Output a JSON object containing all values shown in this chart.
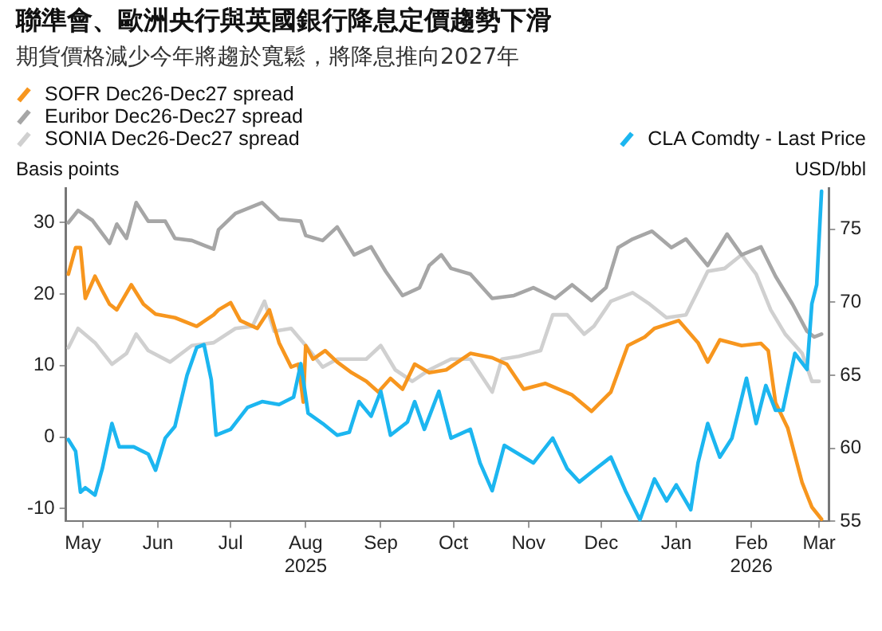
{
  "chart_data": {
    "type": "line",
    "title": "聯準會、歐洲央行與英國銀行降息定價趨勢下滑",
    "subtitle": "期貨價格減少今年將趨於寬鬆，將降息推向2027年",
    "ylabel": "Basis points",
    "y2label": "USD/bbl",
    "legend": "top",
    "xlim": [
      "2025-04-24",
      "2026-03-05"
    ],
    "xticks": [
      {
        "value": "2025-05-01",
        "label": "May"
      },
      {
        "value": "2025-06-01",
        "label": "Jun"
      },
      {
        "value": "2025-07-01",
        "label": "Jul"
      },
      {
        "value": "2025-08-01",
        "label": "Aug\n2025"
      },
      {
        "value": "2025-09-01",
        "label": "Sep"
      },
      {
        "value": "2025-10-01",
        "label": "Oct"
      },
      {
        "value": "2025-11-01",
        "label": "Nov"
      },
      {
        "value": "2025-12-01",
        "label": "Dec"
      },
      {
        "value": "2026-01-01",
        "label": "Jan"
      },
      {
        "value": "2026-02-01",
        "label": "Feb\n2026"
      },
      {
        "value": "2026-03-01",
        "label": "Mar"
      }
    ],
    "ylim": [
      -11.8,
      34.8
    ],
    "yticks": [
      -10,
      0,
      10,
      20,
      30
    ],
    "y2lim": [
      55,
      77.8
    ],
    "y2ticks": [
      55,
      60,
      65,
      70,
      75
    ],
    "series": [
      {
        "name": "SOFR Dec26-Dec27 spread",
        "color": "#f7961e",
        "x": [
          "2025-04-25",
          "2025-04-28",
          "2025-04-30",
          "2025-05-02",
          "2025-05-06",
          "2025-05-09",
          "2025-05-12",
          "2025-05-15",
          "2025-05-21",
          "2025-05-26",
          "2025-05-31",
          "2025-06-08",
          "2025-06-17",
          "2025-06-24",
          "2025-06-26",
          "2025-07-01",
          "2025-07-05",
          "2025-07-12",
          "2025-07-17",
          "2025-07-21",
          "2025-07-26",
          "2025-07-29",
          "2025-07-31",
          "2025-08-01",
          "2025-08-04",
          "2025-08-09",
          "2025-08-14",
          "2025-08-20",
          "2025-08-26",
          "2025-08-31",
          "2025-09-05",
          "2025-09-10",
          "2025-09-15",
          "2025-09-21",
          "2025-09-28",
          "2025-10-08",
          "2025-10-17",
          "2025-10-23",
          "2025-10-30",
          "2025-11-08",
          "2025-11-19",
          "2025-11-27",
          "2025-12-05",
          "2025-12-12",
          "2025-12-19",
          "2025-12-23",
          "2026-01-02",
          "2026-01-10",
          "2026-01-14",
          "2026-01-19",
          "2026-01-28",
          "2026-02-05",
          "2026-02-08",
          "2026-02-11",
          "2026-02-16",
          "2026-02-22",
          "2026-02-26",
          "2026-03-02"
        ],
        "values": [
          22.8,
          26.5,
          26.5,
          19.4,
          22.5,
          20.5,
          18.6,
          17.8,
          21.3,
          18.6,
          17.2,
          16.7,
          15.5,
          17.1,
          17.8,
          18.8,
          16.3,
          15.2,
          17.8,
          13.2,
          9.8,
          10.2,
          4.9,
          12.8,
          10.9,
          12.1,
          10.5,
          9.0,
          7.8,
          6.3,
          8.2,
          6.7,
          10.2,
          9.0,
          9.4,
          11.7,
          11.1,
          10.2,
          6.7,
          7.5,
          5.9,
          3.6,
          6.3,
          12.8,
          14.0,
          15.2,
          16.3,
          13.2,
          10.5,
          13.6,
          12.8,
          13.1,
          12.1,
          4.8,
          1.3,
          -6.4,
          -9.8,
          -11.5
        ]
      },
      {
        "name": "Euribor Dec26-Dec27 spread",
        "color": "#a6a6a6",
        "x": [
          "2025-04-25",
          "2025-04-29",
          "2025-05-05",
          "2025-05-12",
          "2025-05-15",
          "2025-05-19",
          "2025-05-23",
          "2025-05-28",
          "2025-06-04",
          "2025-06-08",
          "2025-06-15",
          "2025-06-24",
          "2025-06-26",
          "2025-07-03",
          "2025-07-14",
          "2025-07-21",
          "2025-07-30",
          "2025-08-01",
          "2025-08-08",
          "2025-08-14",
          "2025-08-21",
          "2025-08-28",
          "2025-09-03",
          "2025-09-10",
          "2025-09-17",
          "2025-09-21",
          "2025-09-26",
          "2025-09-30",
          "2025-10-08",
          "2025-10-17",
          "2025-10-26",
          "2025-11-03",
          "2025-11-12",
          "2025-11-19",
          "2025-11-27",
          "2025-12-03",
          "2025-12-08",
          "2025-12-14",
          "2025-12-22",
          "2025-12-30",
          "2026-01-05",
          "2026-01-14",
          "2026-01-22",
          "2026-01-28",
          "2026-02-05",
          "2026-02-11",
          "2026-02-18",
          "2026-02-24",
          "2026-02-27",
          "2026-03-02"
        ],
        "values": [
          30,
          31.7,
          30.3,
          27.1,
          29.8,
          27.8,
          32.8,
          30.2,
          30.2,
          27.8,
          27.5,
          26.3,
          29.0,
          31.3,
          32.8,
          30.5,
          30.2,
          28.2,
          27.5,
          29.4,
          25.5,
          26.6,
          23.2,
          19.8,
          20.9,
          24.0,
          25.5,
          23.6,
          22.8,
          19.4,
          19.8,
          20.9,
          19.4,
          21.3,
          19.1,
          20.9,
          26.5,
          27.7,
          28.8,
          26.5,
          27.7,
          24.0,
          28.4,
          25.5,
          26.6,
          22.5,
          18.6,
          14.8,
          14.0,
          14.4
        ]
      },
      {
        "name": "SONIA Dec26-Dec27 spread",
        "color": "#d0d0d0",
        "x": [
          "2025-04-25",
          "2025-04-29",
          "2025-05-06",
          "2025-05-13",
          "2025-05-19",
          "2025-05-23",
          "2025-05-28",
          "2025-06-06",
          "2025-06-15",
          "2025-06-24",
          "2025-07-03",
          "2025-07-10",
          "2025-07-15",
          "2025-07-19",
          "2025-07-26",
          "2025-08-01",
          "2025-08-08",
          "2025-08-14",
          "2025-08-26",
          "2025-09-01",
          "2025-09-07",
          "2025-09-14",
          "2025-09-21",
          "2025-09-30",
          "2025-10-08",
          "2025-10-17",
          "2025-10-21",
          "2025-10-28",
          "2025-11-06",
          "2025-11-11",
          "2025-11-17",
          "2025-11-24",
          "2025-11-28",
          "2025-12-05",
          "2025-12-14",
          "2025-12-21",
          "2025-12-28",
          "2026-01-05",
          "2026-01-14",
          "2026-01-21",
          "2026-01-28",
          "2026-02-03",
          "2026-02-09",
          "2026-02-15",
          "2026-02-22",
          "2026-02-26",
          "2026-03-01"
        ],
        "values": [
          12.5,
          15.2,
          13.2,
          10.2,
          11.7,
          14.4,
          12.1,
          10.5,
          12.8,
          13.2,
          15.2,
          15.5,
          19.0,
          14.8,
          15.2,
          12.8,
          9.8,
          10.9,
          10.9,
          12.8,
          9.4,
          7.8,
          9.4,
          10.9,
          10.9,
          6.3,
          10.9,
          11.3,
          12.1,
          17.1,
          17.1,
          14.4,
          15.5,
          19.0,
          20.2,
          18.6,
          16.7,
          17.1,
          23.2,
          23.6,
          25.5,
          22.8,
          17.8,
          14.4,
          11.7,
          7.8,
          7.8
        ]
      },
      {
        "name": "CLA Comdty - Last Price",
        "color": "#1cb6f0",
        "axis": "y2",
        "x": [
          "2025-04-25",
          "2025-04-28",
          "2025-04-30",
          "2025-05-02",
          "2025-05-06",
          "2025-05-09",
          "2025-05-13",
          "2025-05-16",
          "2025-05-22",
          "2025-05-28",
          "2025-05-31",
          "2025-06-04",
          "2025-06-08",
          "2025-06-13",
          "2025-06-17",
          "2025-06-20",
          "2025-06-23",
          "2025-06-25",
          "2025-07-01",
          "2025-07-08",
          "2025-07-14",
          "2025-07-21",
          "2025-07-27",
          "2025-07-30",
          "2025-08-02",
          "2025-08-08",
          "2025-08-14",
          "2025-08-19",
          "2025-08-23",
          "2025-08-28",
          "2025-09-01",
          "2025-09-05",
          "2025-09-12",
          "2025-09-15",
          "2025-09-19",
          "2025-09-25",
          "2025-09-30",
          "2025-10-08",
          "2025-10-12",
          "2025-10-17",
          "2025-10-22",
          "2025-10-28",
          "2025-11-03",
          "2025-11-11",
          "2025-11-17",
          "2025-11-22",
          "2025-11-28",
          "2025-12-05",
          "2025-12-11",
          "2025-12-17",
          "2025-12-23",
          "2025-12-28",
          "2026-01-01",
          "2026-01-07",
          "2026-01-10",
          "2026-01-14",
          "2026-01-19",
          "2026-01-24",
          "2026-01-30",
          "2026-02-03",
          "2026-02-07",
          "2026-02-11",
          "2026-02-14",
          "2026-02-19",
          "2026-02-24",
          "2026-02-26",
          "2026-02-28",
          "2026-03-02"
        ],
        "values": [
          60.6,
          59.8,
          57.0,
          57.3,
          56.8,
          58.6,
          61.7,
          60.1,
          60.1,
          59.6,
          58.5,
          60.7,
          61.5,
          65.0,
          66.9,
          67.1,
          64.7,
          60.9,
          61.3,
          62.8,
          63.2,
          63.0,
          63.5,
          65.8,
          62.4,
          61.7,
          60.9,
          61.1,
          63.2,
          62.2,
          63.9,
          60.9,
          61.8,
          63.2,
          61.3,
          63.9,
          60.7,
          61.3,
          59.0,
          57.1,
          60.2,
          59.6,
          59.0,
          60.7,
          58.6,
          57.7,
          58.5,
          59.4,
          57.1,
          55.1,
          57.9,
          56.4,
          57.5,
          55.8,
          59.0,
          61.7,
          59.4,
          60.7,
          64.8,
          61.7,
          64.3,
          62.6,
          62.6,
          66.5,
          65.4,
          69.9,
          71.2,
          77.6
        ]
      }
    ]
  }
}
